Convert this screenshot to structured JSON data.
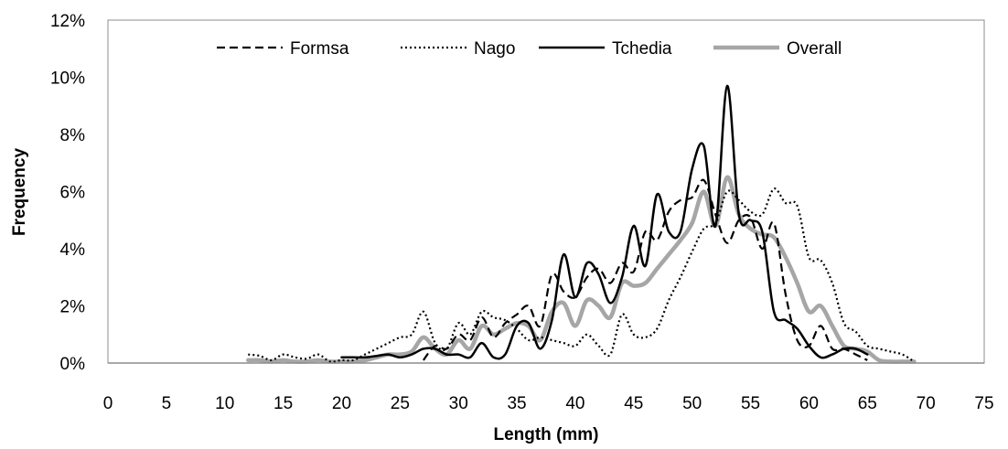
{
  "chart_data": {
    "type": "line",
    "xlabel": "Length (mm)",
    "ylabel": "Frequency",
    "xlim": [
      0,
      75
    ],
    "ylim": [
      0,
      12
    ],
    "x_ticks": [
      "0",
      "5",
      "10",
      "15",
      "20",
      "25",
      "30",
      "35",
      "40",
      "45",
      "50",
      "55",
      "60",
      "65",
      "70",
      "75"
    ],
    "y_ticks": [
      "0%",
      "2%",
      "4%",
      "6%",
      "8%",
      "10%",
      "12%"
    ],
    "y_unit": "%",
    "grid": false,
    "legend_position": "top",
    "series": [
      {
        "name": "Formsa",
        "color": "#000000",
        "dash": "dashed",
        "x": [
          27,
          28,
          29,
          30,
          31,
          32,
          33,
          34,
          35,
          36,
          37,
          38,
          39,
          40,
          41,
          42,
          43,
          44,
          45,
          46,
          47,
          48,
          49,
          50,
          51,
          52,
          53,
          54,
          55,
          56,
          57,
          58,
          59,
          60,
          61,
          62,
          63,
          64,
          65
        ],
        "values": [
          0.1,
          0.6,
          0.5,
          1.0,
          0.8,
          1.6,
          0.9,
          1.4,
          1.7,
          2.0,
          1.3,
          3.1,
          2.5,
          2.3,
          3.0,
          3.3,
          2.8,
          3.5,
          3.2,
          4.6,
          4.3,
          5.3,
          5.7,
          5.8,
          6.4,
          5.2,
          4.2,
          5.0,
          5.1,
          4.0,
          4.9,
          2.4,
          0.8,
          0.6,
          1.3,
          0.5,
          0.5,
          0.3,
          0.1
        ]
      },
      {
        "name": "Nago",
        "color": "#000000",
        "dash": "dotted",
        "x": [
          12,
          13,
          14,
          15,
          16,
          17,
          18,
          19,
          20,
          21,
          22,
          23,
          24,
          25,
          26,
          27,
          28,
          29,
          30,
          31,
          32,
          33,
          34,
          35,
          36,
          37,
          38,
          39,
          40,
          41,
          42,
          43,
          44,
          45,
          46,
          47,
          48,
          49,
          50,
          51,
          52,
          53,
          54,
          55,
          56,
          57,
          58,
          59,
          60,
          61,
          62,
          63,
          64,
          65,
          66,
          67,
          68,
          69
        ],
        "values": [
          0.3,
          0.25,
          0.1,
          0.3,
          0.2,
          0.15,
          0.3,
          0.05,
          0.1,
          0.1,
          0.3,
          0.5,
          0.7,
          0.9,
          1.0,
          1.8,
          0.7,
          0.5,
          1.4,
          1.0,
          1.8,
          1.6,
          1.5,
          1.2,
          0.8,
          0.9,
          0.8,
          0.7,
          0.6,
          1.0,
          0.6,
          0.3,
          1.7,
          1.0,
          0.9,
          1.2,
          2.2,
          3.0,
          3.9,
          4.7,
          4.9,
          6.0,
          5.7,
          5.3,
          5.2,
          6.1,
          5.6,
          5.5,
          3.7,
          3.6,
          2.8,
          1.4,
          1.1,
          0.6,
          0.5,
          0.4,
          0.3,
          0.05
        ]
      },
      {
        "name": "Tchedia",
        "color": "#000000",
        "dash": "solid",
        "x": [
          20,
          21,
          22,
          23,
          24,
          25,
          26,
          27,
          28,
          29,
          30,
          31,
          32,
          33,
          34,
          35,
          36,
          37,
          38,
          39,
          40,
          41,
          42,
          43,
          44,
          45,
          46,
          47,
          48,
          49,
          50,
          51,
          52,
          53,
          54,
          55,
          56,
          57,
          58,
          59,
          60,
          61,
          62,
          63,
          64,
          65
        ],
        "values": [
          0.2,
          0.2,
          0.2,
          0.25,
          0.3,
          0.2,
          0.3,
          0.5,
          0.5,
          0.3,
          0.3,
          0.2,
          0.7,
          0.2,
          0.3,
          1.3,
          1.4,
          0.5,
          1.5,
          3.8,
          2.3,
          3.5,
          3.1,
          2.1,
          3.0,
          4.8,
          3.4,
          5.9,
          4.6,
          4.6,
          6.8,
          7.6,
          4.8,
          9.7,
          5.2,
          5.0,
          4.6,
          1.8,
          1.5,
          1.2,
          0.6,
          0.2,
          0.3,
          0.5,
          0.5,
          0.3
        ]
      },
      {
        "name": "Overall",
        "color": "#a6a6a6",
        "dash": "solid",
        "x": [
          12,
          13,
          14,
          15,
          16,
          17,
          18,
          19,
          20,
          21,
          22,
          23,
          24,
          25,
          26,
          27,
          28,
          29,
          30,
          31,
          32,
          33,
          34,
          35,
          36,
          37,
          38,
          39,
          40,
          41,
          42,
          43,
          44,
          45,
          46,
          47,
          48,
          49,
          50,
          51,
          52,
          53,
          54,
          55,
          56,
          57,
          58,
          59,
          60,
          61,
          62,
          63,
          64,
          65,
          66,
          67,
          68,
          69
        ],
        "values": [
          0.1,
          0.1,
          0.05,
          0.1,
          0.05,
          0.05,
          0.1,
          0.05,
          0.05,
          0.05,
          0.1,
          0.2,
          0.3,
          0.3,
          0.4,
          0.9,
          0.5,
          0.3,
          0.8,
          0.5,
          1.3,
          1.0,
          1.2,
          1.4,
          1.3,
          0.8,
          1.8,
          2.1,
          1.3,
          2.2,
          2.0,
          1.6,
          2.8,
          2.7,
          2.8,
          3.3,
          3.8,
          4.3,
          4.9,
          6.0,
          4.8,
          6.5,
          5.2,
          4.7,
          4.5,
          4.4,
          3.7,
          2.8,
          1.8,
          2.0,
          1.3,
          0.6,
          0.5,
          0.4,
          0.1,
          0.05,
          0.05,
          0.05
        ]
      }
    ]
  }
}
